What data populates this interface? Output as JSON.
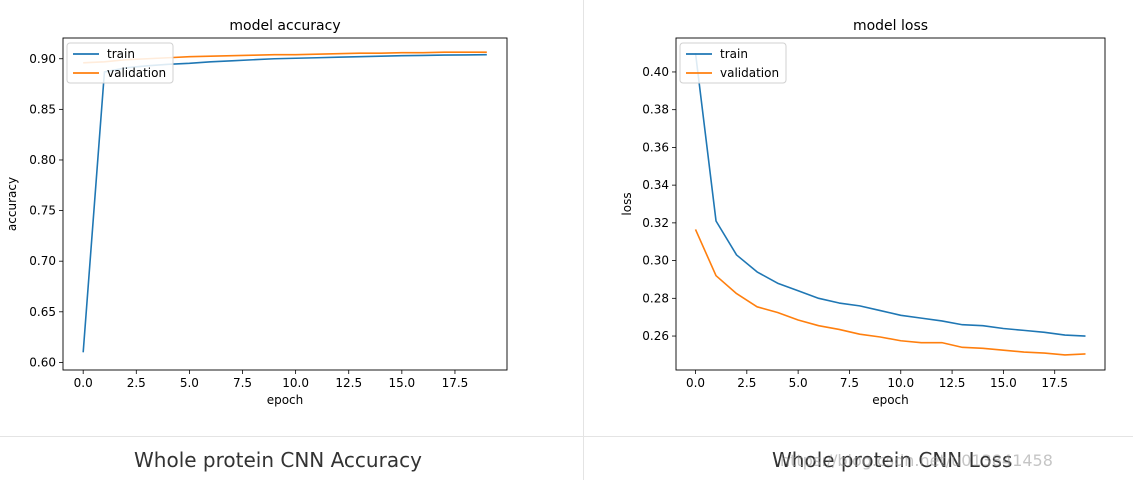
{
  "chart_data": [
    {
      "type": "line",
      "title": "model accuracy",
      "xlabel": "epoch",
      "ylabel": "accuracy",
      "xlim": [
        -0.95,
        19.95
      ],
      "ylim": [
        0.5925,
        0.9205
      ],
      "xticks": [
        0.0,
        2.5,
        5.0,
        7.5,
        10.0,
        12.5,
        15.0,
        17.5
      ],
      "xtick_labels": [
        "0.0",
        "2.5",
        "5.0",
        "7.5",
        "10.0",
        "12.5",
        "15.0",
        "17.5"
      ],
      "yticks": [
        0.6,
        0.65,
        0.7,
        0.75,
        0.8,
        0.85,
        0.9
      ],
      "ytick_labels": [
        "0.60",
        "0.65",
        "0.70",
        "0.75",
        "0.80",
        "0.85",
        "0.90"
      ],
      "x": [
        0,
        1,
        2,
        3,
        4,
        5,
        6,
        7,
        8,
        9,
        10,
        11,
        12,
        13,
        14,
        15,
        16,
        17,
        18,
        19
      ],
      "series": [
        {
          "name": "train",
          "color": "#1f77b4",
          "values": [
            0.61,
            0.887,
            0.891,
            0.893,
            0.8945,
            0.8955,
            0.897,
            0.898,
            0.899,
            0.9,
            0.9005,
            0.901,
            0.9015,
            0.902,
            0.9025,
            0.903,
            0.9033,
            0.9036,
            0.9038,
            0.904
          ]
        },
        {
          "name": "validation",
          "color": "#ff7f0e",
          "values": [
            0.896,
            0.897,
            0.899,
            0.9,
            0.901,
            0.902,
            0.9025,
            0.903,
            0.9035,
            0.904,
            0.904,
            0.9045,
            0.905,
            0.9055,
            0.9055,
            0.906,
            0.906,
            0.9065,
            0.9065,
            0.9065
          ]
        }
      ],
      "legend": "upper left",
      "grid": false
    },
    {
      "type": "line",
      "title": "model loss",
      "xlabel": "epoch",
      "ylabel": "loss",
      "xlim": [
        -0.95,
        19.95
      ],
      "ylim": [
        0.242,
        0.418
      ],
      "xticks": [
        0.0,
        2.5,
        5.0,
        7.5,
        10.0,
        12.5,
        15.0,
        17.5
      ],
      "xtick_labels": [
        "0.0",
        "2.5",
        "5.0",
        "7.5",
        "10.0",
        "12.5",
        "15.0",
        "17.5"
      ],
      "yticks": [
        0.26,
        0.28,
        0.3,
        0.32,
        0.34,
        0.36,
        0.38,
        0.4
      ],
      "ytick_labels": [
        "0.26",
        "0.28",
        "0.30",
        "0.32",
        "0.34",
        "0.36",
        "0.38",
        "0.40"
      ],
      "x": [
        0,
        1,
        2,
        3,
        4,
        5,
        6,
        7,
        8,
        9,
        10,
        11,
        12,
        13,
        14,
        15,
        16,
        17,
        18,
        19
      ],
      "series": [
        {
          "name": "train",
          "color": "#1f77b4",
          "values": [
            0.41,
            0.321,
            0.303,
            0.294,
            0.288,
            0.284,
            0.28,
            0.2775,
            0.276,
            0.2735,
            0.271,
            0.2695,
            0.268,
            0.266,
            0.2655,
            0.264,
            0.263,
            0.262,
            0.2605,
            0.26
          ]
        },
        {
          "name": "validation",
          "color": "#ff7f0e",
          "values": [
            0.3165,
            0.292,
            0.2825,
            0.2755,
            0.2725,
            0.2685,
            0.2655,
            0.2635,
            0.261,
            0.2595,
            0.2575,
            0.2565,
            0.2565,
            0.254,
            0.2535,
            0.2525,
            0.2515,
            0.251,
            0.25,
            0.2505
          ]
        }
      ],
      "legend": "upper left",
      "grid": false
    }
  ],
  "captions": {
    "left": "Whole protein CNN Accuracy",
    "right": "Whole protein CNN Loss"
  },
  "watermark": "https://blog.csdn.net/u013841458"
}
